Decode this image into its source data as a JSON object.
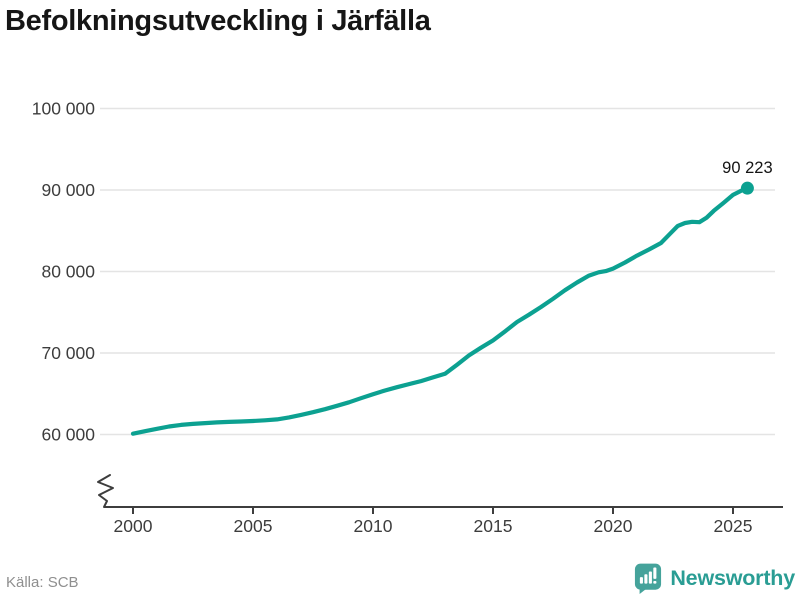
{
  "header": {
    "title": "Befolkningsutveckling i Järfälla"
  },
  "footer": {
    "source": "Källa: SCB",
    "brand_name": "Newsworthy"
  },
  "colors": {
    "background": "#ffffff",
    "title_text": "#161616",
    "line": "#0ca191",
    "dot": "#0ca191",
    "grid": "#e4e4e4",
    "axis": "#3d3d3d",
    "tick_label": "#3d3d3d",
    "annotation": "#141414",
    "source_text": "#8f8f8f",
    "brand_text": "#2a9d94",
    "logo_bubble": "#45a39b",
    "logo_glyph": "#ffffff"
  },
  "chart_data": {
    "type": "line",
    "title": "Befolkningsutveckling i Järfälla",
    "xlabel": "",
    "ylabel": "",
    "xticks": [
      2000,
      2005,
      2010,
      2015,
      2020,
      2025
    ],
    "xtick_labels": [
      "2000",
      "2005",
      "2010",
      "2015",
      "2020",
      "2025"
    ],
    "yticks": [
      60000,
      70000,
      80000,
      90000,
      100000
    ],
    "ytick_labels": [
      "60 000",
      "70 000",
      "80 000",
      "90 000",
      "100 000"
    ],
    "ylim": [
      60000,
      100000
    ],
    "xlim": [
      1998.8,
      2026.9
    ],
    "grid": "horizontal-only",
    "y_axis_break": true,
    "legend": "none",
    "source": "SCB",
    "series": [
      {
        "color": "#0ca191",
        "points": [
          [
            2000,
            60100
          ],
          [
            2000.5,
            60400
          ],
          [
            2001,
            60700
          ],
          [
            2001.5,
            60980
          ],
          [
            2002,
            61180
          ],
          [
            2002.5,
            61300
          ],
          [
            2003,
            61400
          ],
          [
            2003.5,
            61480
          ],
          [
            2004,
            61550
          ],
          [
            2004.5,
            61600
          ],
          [
            2005,
            61660
          ],
          [
            2005.5,
            61740
          ],
          [
            2006,
            61850
          ],
          [
            2006.5,
            62100
          ],
          [
            2007,
            62400
          ],
          [
            2007.5,
            62740
          ],
          [
            2008,
            63100
          ],
          [
            2008.5,
            63520
          ],
          [
            2009,
            63950
          ],
          [
            2009.5,
            64450
          ],
          [
            2010,
            64950
          ],
          [
            2010.5,
            65400
          ],
          [
            2011,
            65800
          ],
          [
            2011.5,
            66180
          ],
          [
            2012,
            66550
          ],
          [
            2012.5,
            67000
          ],
          [
            2013,
            67450
          ],
          [
            2013.5,
            68550
          ],
          [
            2014,
            69700
          ],
          [
            2014.5,
            70650
          ],
          [
            2015,
            71550
          ],
          [
            2015.5,
            72650
          ],
          [
            2016,
            73800
          ],
          [
            2016.5,
            74700
          ],
          [
            2017,
            75650
          ],
          [
            2017.5,
            76650
          ],
          [
            2018,
            77700
          ],
          [
            2018.5,
            78650
          ],
          [
            2019,
            79500
          ],
          [
            2019.4,
            79900
          ],
          [
            2019.7,
            80050
          ],
          [
            2020,
            80350
          ],
          [
            2020.5,
            81100
          ],
          [
            2021,
            81950
          ],
          [
            2021.5,
            82700
          ],
          [
            2022,
            83500
          ],
          [
            2022.4,
            84700
          ],
          [
            2022.7,
            85600
          ],
          [
            2023,
            85950
          ],
          [
            2023.3,
            86100
          ],
          [
            2023.6,
            86050
          ],
          [
            2023.9,
            86600
          ],
          [
            2024.2,
            87450
          ],
          [
            2024.6,
            88400
          ],
          [
            2025,
            89400
          ],
          [
            2025.3,
            89850
          ],
          [
            2025.6,
            90223
          ]
        ],
        "last_point": [
          2025.6,
          90223
        ],
        "last_point_label": "90 223"
      }
    ]
  }
}
